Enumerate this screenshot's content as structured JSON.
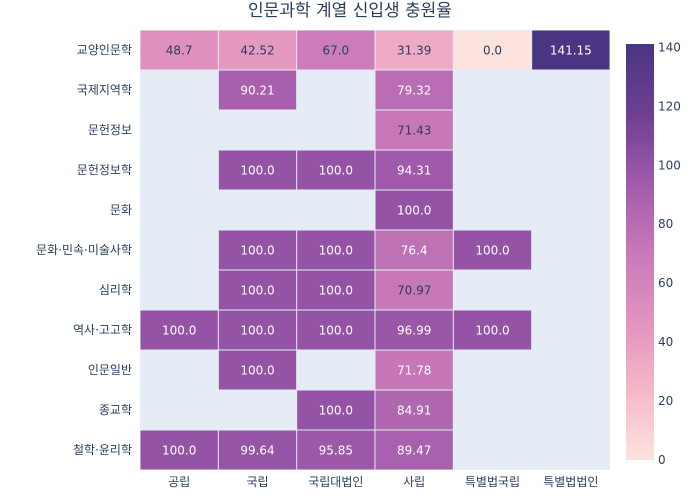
{
  "chart_data": {
    "type": "heatmap",
    "title": "인문과학 계열 신입생 충원율",
    "xlabel": "",
    "ylabel": "",
    "x": [
      "공립",
      "국립",
      "국립대법인",
      "사립",
      "특별법국립",
      "특별법법인"
    ],
    "y": [
      "교양인문학",
      "국제지역학",
      "문헌정보",
      "문헌정보학",
      "문화",
      "문화·민속·미술사학",
      "심리학",
      "역사·고고학",
      "인문일반",
      "종교학",
      "철학·윤리학"
    ],
    "z": [
      [
        48.7,
        42.52,
        67.0,
        31.39,
        0.0,
        141.15
      ],
      [
        null,
        90.21,
        null,
        79.32,
        null,
        null
      ],
      [
        null,
        null,
        null,
        71.43,
        null,
        null
      ],
      [
        null,
        100.0,
        100.0,
        94.31,
        null,
        null
      ],
      [
        null,
        null,
        null,
        100.0,
        null,
        null
      ],
      [
        null,
        100.0,
        100.0,
        76.4,
        100.0,
        null
      ],
      [
        null,
        100.0,
        100.0,
        70.97,
        null,
        null
      ],
      [
        100.0,
        100.0,
        100.0,
        96.99,
        100.0,
        null
      ],
      [
        null,
        100.0,
        null,
        71.78,
        null,
        null
      ],
      [
        null,
        null,
        100.0,
        84.91,
        null,
        null
      ],
      [
        100.0,
        99.64,
        95.85,
        89.47,
        null,
        null
      ]
    ],
    "text": [
      [
        "48.7",
        "42.52",
        "67.0",
        "31.39",
        "0.0",
        "141.15"
      ],
      [
        "",
        "90.21",
        "",
        "79.32",
        "",
        ""
      ],
      [
        "",
        "",
        "",
        "71.43",
        "",
        ""
      ],
      [
        "",
        "100.0",
        "100.0",
        "94.31",
        "",
        ""
      ],
      [
        "",
        "",
        "",
        "100.0",
        "",
        ""
      ],
      [
        "",
        "100.0",
        "100.0",
        "76.4",
        "100.0",
        ""
      ],
      [
        "",
        "100.0",
        "100.0",
        "70.97",
        "",
        ""
      ],
      [
        "100.0",
        "100.0",
        "100.0",
        "96.99",
        "100.0",
        ""
      ],
      [
        "",
        "100.0",
        "",
        "71.78",
        "",
        ""
      ],
      [
        "",
        "",
        "100.0",
        "84.91",
        "",
        ""
      ],
      [
        "100.0",
        "99.64",
        "95.85",
        "89.47",
        "",
        ""
      ]
    ],
    "zlim": [
      0,
      141.15
    ],
    "colorbar_ticks": [
      0,
      20,
      40,
      60,
      80,
      100,
      120,
      140
    ],
    "colorscale": [
      "#fde3dd",
      "#f5b8c8",
      "#e292be",
      "#c978b9",
      "#a15aab",
      "#6c3f91",
      "#4a3582"
    ],
    "background": "#e5ecf6",
    "grid": false,
    "colorbar_position": "right"
  }
}
